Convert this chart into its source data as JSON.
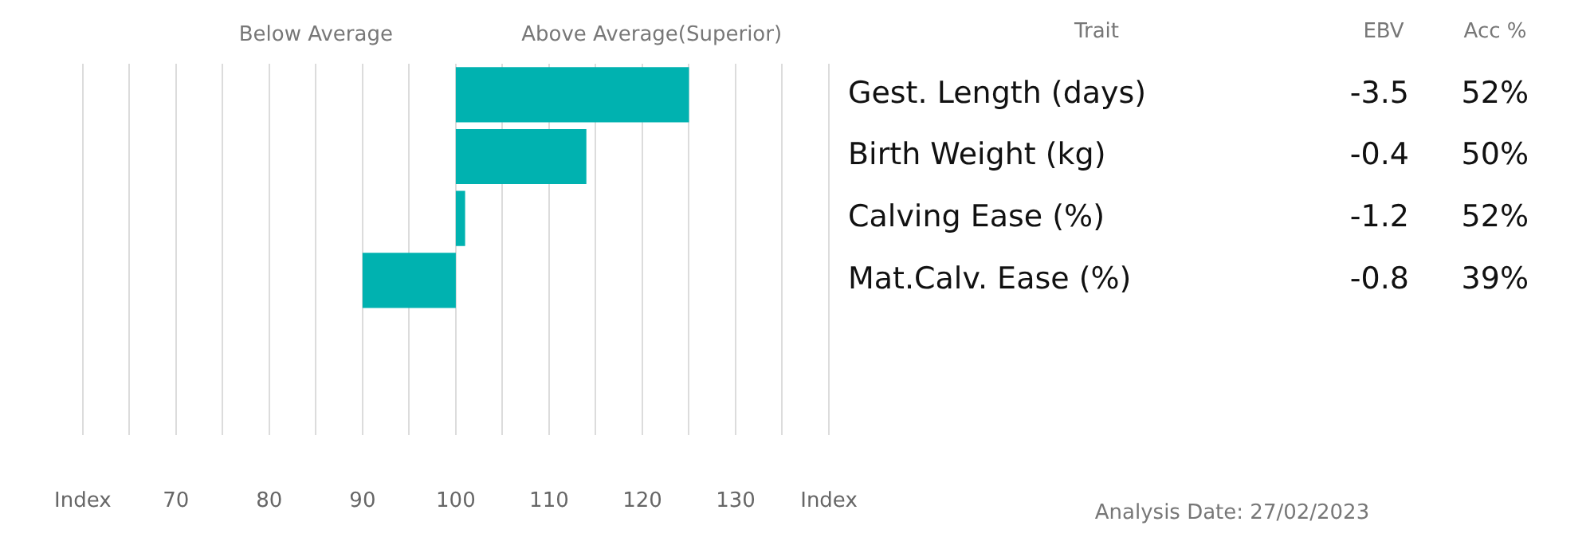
{
  "chart_data": {
    "type": "bar",
    "orientation": "horizontal",
    "categories": [
      "Gest. Length (days)",
      "Birth Weight (kg)",
      "Calving Ease (%)",
      "Mat.Calv. Ease (%)",
      null,
      null
    ],
    "base": [
      100,
      100,
      100,
      100,
      null,
      null
    ],
    "values": [
      25,
      14,
      1,
      -10,
      null,
      null
    ],
    "color": "#00b2b0",
    "xlim": [
      60,
      140
    ],
    "xticks": [
      {
        "value": 60,
        "label": "Index"
      },
      {
        "value": 65,
        "label": null
      },
      70,
      {
        "value": 75,
        "label": null
      },
      80,
      {
        "value": 85,
        "label": null
      },
      90,
      {
        "value": 95,
        "label": null
      },
      100,
      {
        "value": 105,
        "label": null
      },
      110,
      {
        "value": 115,
        "label": null
      },
      120,
      {
        "value": 125,
        "label": null
      },
      130,
      {
        "value": 135,
        "label": null
      },
      {
        "value": 140,
        "label": "Index"
      }
    ],
    "grid": "x",
    "legend": false,
    "annotations": [
      "Below Average",
      "Above Average(Superior)",
      "Trait",
      "EBV",
      "Acc %",
      "-3.5",
      "52%",
      "-0.4",
      "50%",
      "-1.2",
      "52%",
      "-0.8",
      "39%",
      "Analysis Date: 27/02/2023"
    ]
  }
}
